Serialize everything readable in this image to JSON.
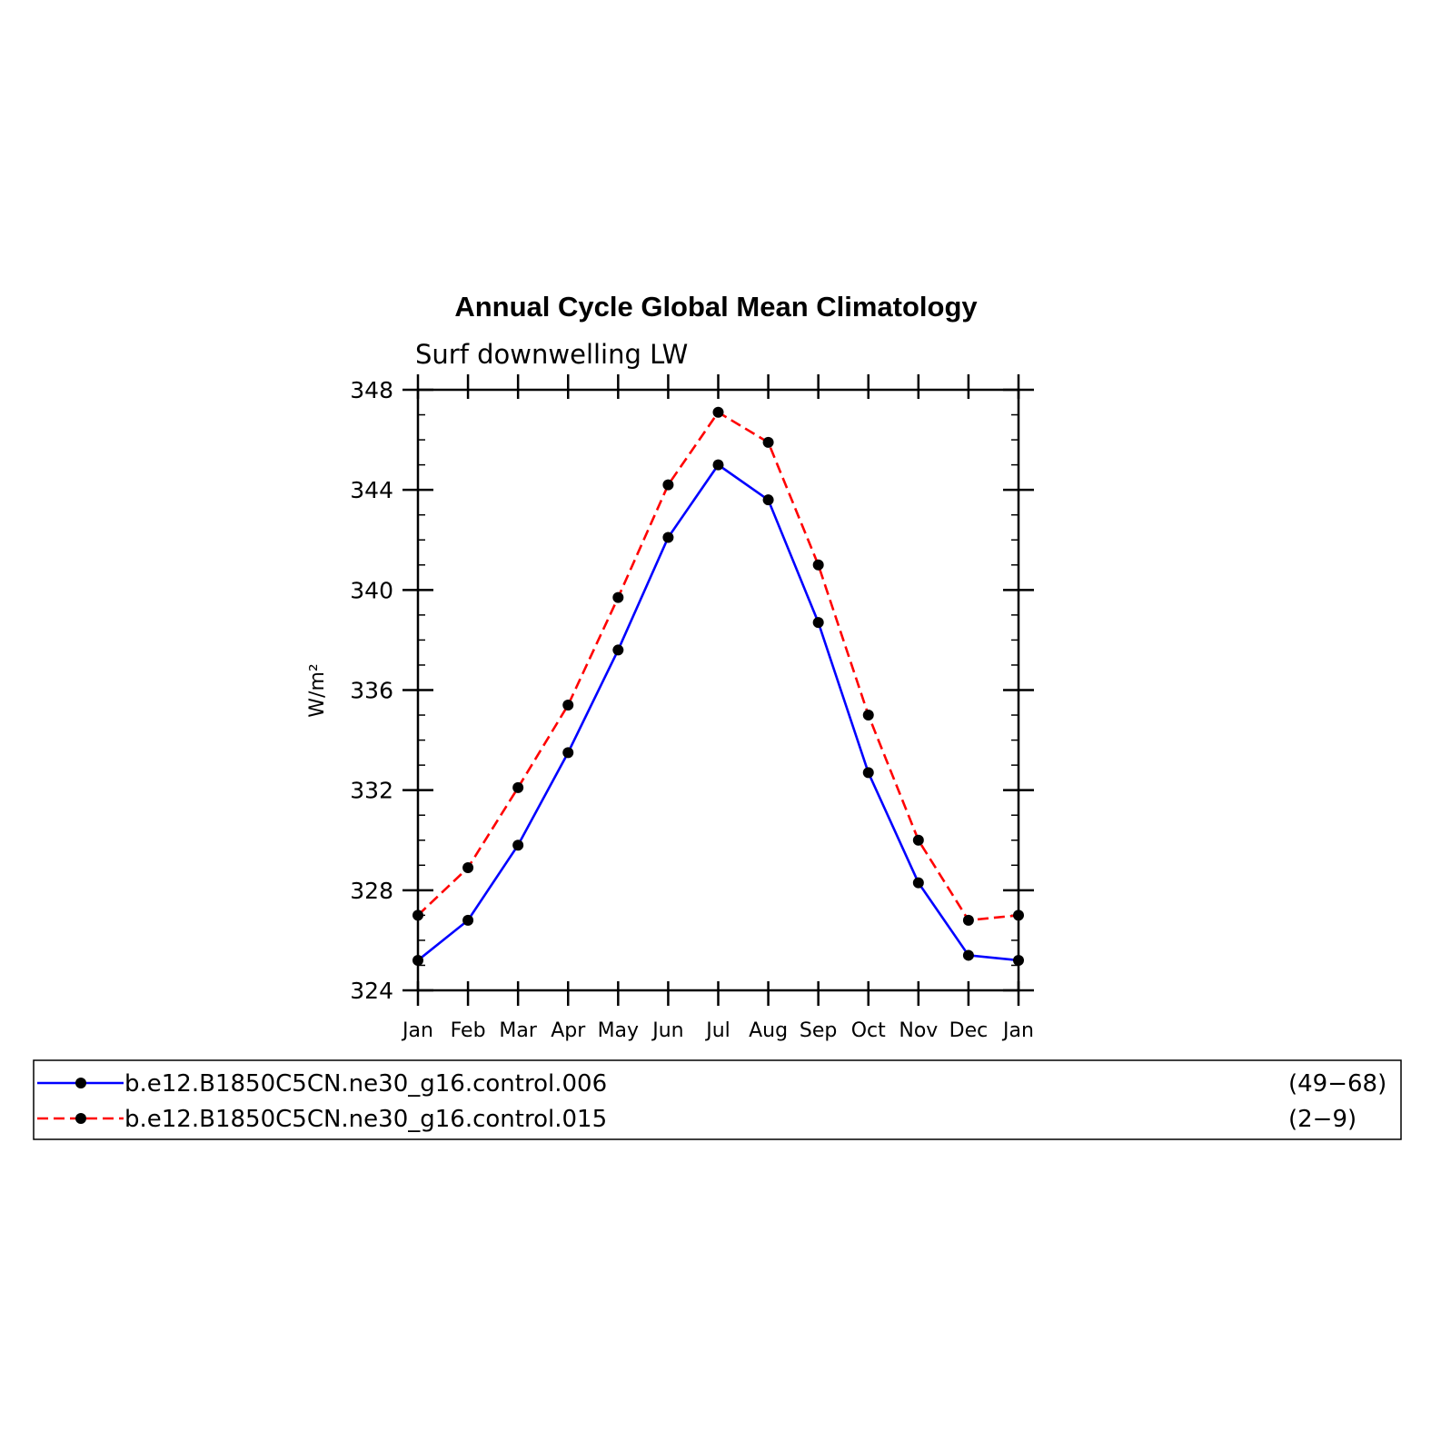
{
  "chart_data": {
    "type": "line",
    "title": "Annual Cycle Global Mean Climatology",
    "subtitle": "Surf downwelling LW",
    "ylabel": "W/m²",
    "xlabel": "",
    "categories": [
      "Jan",
      "Feb",
      "Mar",
      "Apr",
      "May",
      "Jun",
      "Jul",
      "Aug",
      "Sep",
      "Oct",
      "Nov",
      "Dec",
      "Jan"
    ],
    "ylim": [
      324,
      348
    ],
    "yticks": [
      324,
      328,
      332,
      336,
      340,
      344,
      348
    ],
    "grid": false,
    "legend_position": "bottom",
    "series": [
      {
        "name": "b.e12.B1850C5CN.ne30_g16.control.006",
        "years": "(49−68)",
        "color": "#0000ff",
        "style": "solid",
        "values": [
          325.2,
          326.8,
          329.8,
          333.5,
          337.6,
          342.1,
          345.0,
          343.6,
          338.7,
          332.7,
          328.3,
          325.4,
          325.2
        ]
      },
      {
        "name": "b.e12.B1850C5CN.ne30_g16.control.015",
        "years": "(2−9)",
        "color": "#ff0000",
        "style": "dashed",
        "values": [
          327.0,
          328.9,
          332.1,
          335.4,
          339.7,
          344.2,
          347.1,
          345.9,
          341.0,
          335.0,
          330.0,
          326.8,
          327.0
        ]
      }
    ]
  }
}
